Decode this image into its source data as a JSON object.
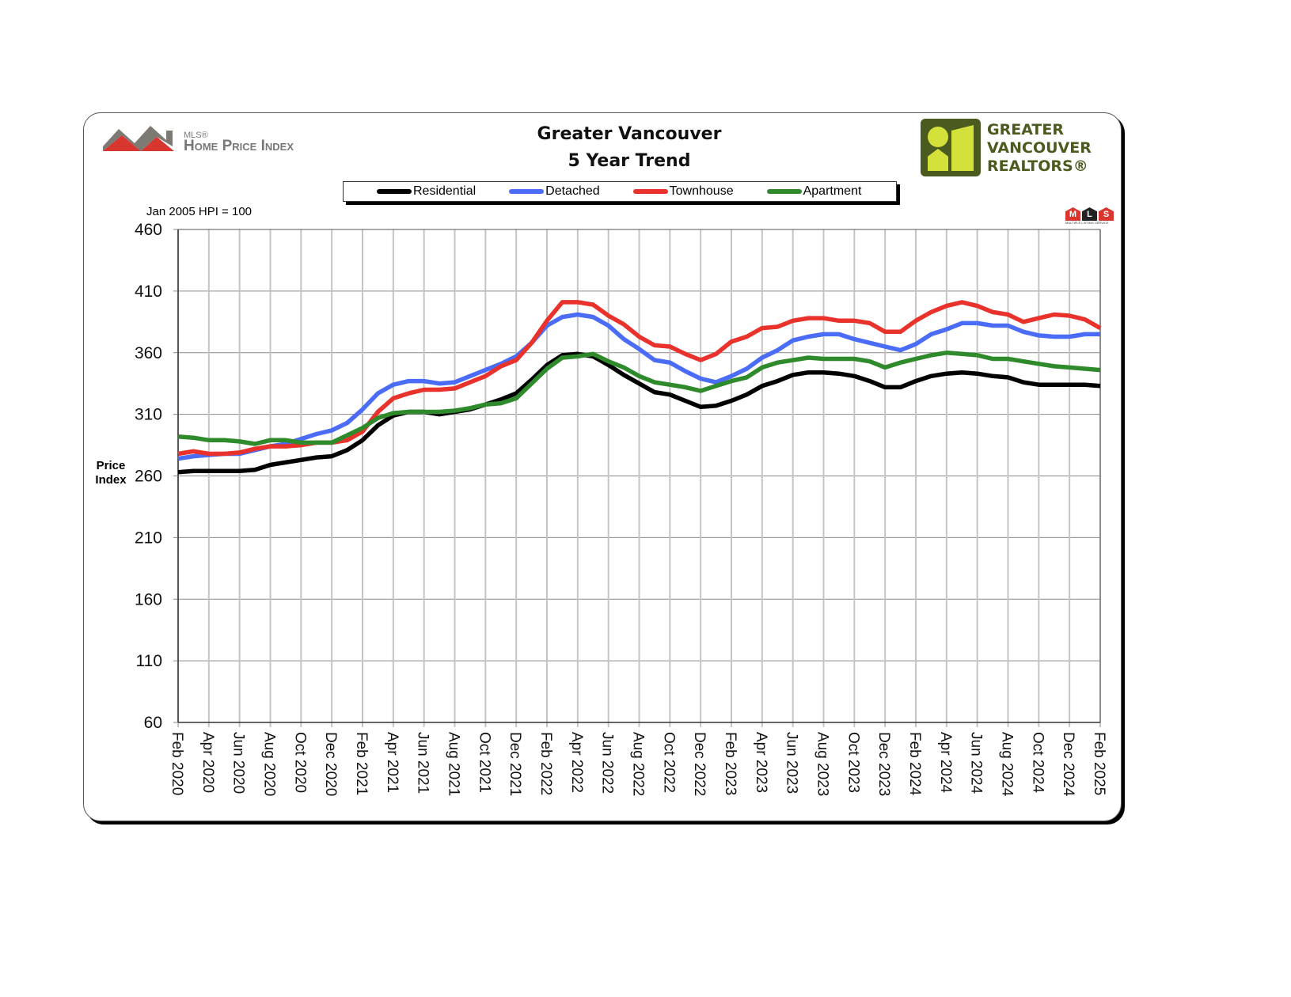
{
  "header": {
    "logo_left_small": "MLS®",
    "logo_left_main": "Home Price Index",
    "logo_right_lines": [
      "GREATER",
      "VANCOUVER",
      "REALTORS®"
    ],
    "mls_badge": "MLS",
    "mls_badge_sub": "MULTIPLE LISTING SERVICE"
  },
  "chart_data": {
    "type": "line",
    "title": "Greater Vancouver",
    "subtitle": "5 Year Trend",
    "note": "Jan 2005 HPI = 100",
    "ylabel": "Price Index",
    "ylabel_lines": [
      "Price",
      "Index"
    ],
    "xlabel": "",
    "ylim": [
      60,
      460
    ],
    "yticks": [
      460,
      410,
      360,
      310,
      260,
      210,
      160,
      110,
      60
    ],
    "grid": true,
    "legend_position": "top-center",
    "x_start": "Feb 2020",
    "x_step": "monthly",
    "xtick_labels": [
      "Feb 2020",
      "Apr 2020",
      "Jun 2020",
      "Aug 2020",
      "Oct 2020",
      "Dec 2020",
      "Feb 2021",
      "Apr 2021",
      "Jun 2021",
      "Aug 2021",
      "Oct 2021",
      "Dec 2021",
      "Feb 2022",
      "Apr 2022",
      "Jun 2022",
      "Aug 2022",
      "Oct 2022",
      "Dec 2022",
      "Feb 2023",
      "Apr 2023",
      "Jun 2023",
      "Aug 2023",
      "Oct 2023",
      "Dec 2023",
      "Feb 2024",
      "Apr 2024",
      "Jun 2024",
      "Aug 2024",
      "Oct 2024",
      "Dec 2024",
      "Feb 2025"
    ],
    "series": [
      {
        "name": "Residential",
        "color": "#000000",
        "values": [
          263,
          264,
          264,
          264,
          264,
          265,
          269,
          271,
          273,
          275,
          276,
          281,
          289,
          301,
          309,
          312,
          312,
          310,
          312,
          314,
          318,
          322,
          327,
          338,
          350,
          358,
          359,
          357,
          350,
          342,
          335,
          328,
          326,
          321,
          316,
          317,
          321,
          326,
          333,
          337,
          342,
          344,
          344,
          343,
          341,
          337,
          332,
          332,
          337,
          341,
          343,
          344,
          343,
          341,
          340,
          336,
          334,
          334,
          334,
          334,
          333
        ]
      },
      {
        "name": "Detached",
        "color": "#4a6cf7",
        "values": [
          274,
          276,
          277,
          278,
          278,
          281,
          284,
          286,
          290,
          294,
          297,
          303,
          314,
          327,
          334,
          337,
          337,
          335,
          336,
          341,
          346,
          351,
          357,
          368,
          382,
          389,
          391,
          389,
          382,
          371,
          363,
          354,
          352,
          345,
          339,
          336,
          341,
          347,
          356,
          362,
          370,
          373,
          375,
          375,
          371,
          368,
          365,
          362,
          367,
          375,
          379,
          384,
          384,
          382,
          382,
          377,
          374,
          373,
          373,
          375,
          375
        ]
      },
      {
        "name": "Townhouse",
        "color": "#e8322b",
        "values": [
          278,
          280,
          278,
          278,
          279,
          282,
          284,
          284,
          285,
          287,
          287,
          289,
          296,
          312,
          323,
          327,
          330,
          330,
          331,
          336,
          341,
          349,
          354,
          368,
          386,
          401,
          401,
          399,
          390,
          383,
          373,
          366,
          365,
          359,
          354,
          359,
          369,
          373,
          380,
          381,
          386,
          388,
          388,
          386,
          386,
          384,
          377,
          377,
          386,
          393,
          398,
          401,
          398,
          393,
          391,
          385,
          388,
          391,
          390,
          387,
          380
        ]
      },
      {
        "name": "Apartment",
        "color": "#2e8a2a",
        "values": [
          292,
          291,
          289,
          289,
          288,
          286,
          289,
          289,
          287,
          287,
          287,
          293,
          299,
          307,
          311,
          312,
          312,
          312,
          313,
          315,
          318,
          319,
          323,
          335,
          347,
          356,
          357,
          359,
          353,
          348,
          341,
          336,
          334,
          332,
          329,
          333,
          337,
          340,
          348,
          352,
          354,
          356,
          355,
          355,
          355,
          353,
          348,
          352,
          355,
          358,
          360,
          359,
          358,
          355,
          355,
          353,
          351,
          349,
          348,
          347,
          346
        ]
      }
    ]
  }
}
